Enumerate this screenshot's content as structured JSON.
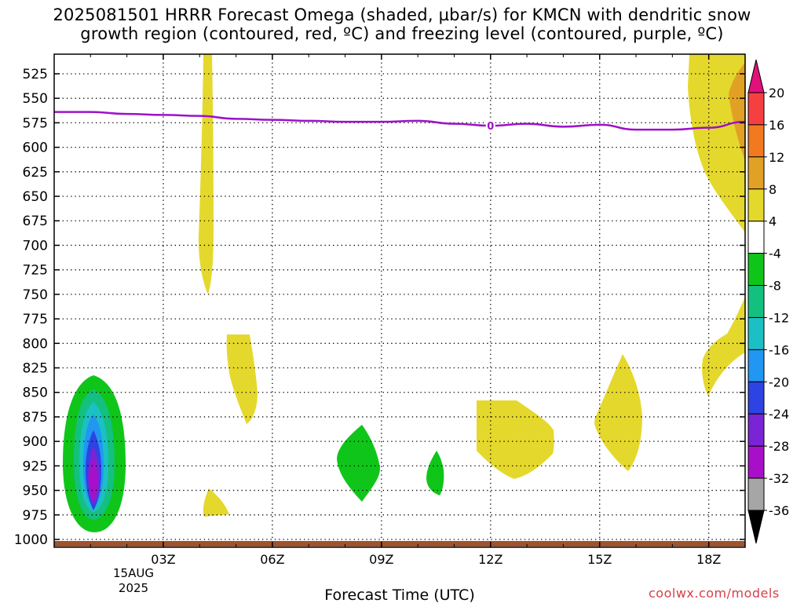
{
  "chart_data": {
    "type": "heatmap",
    "title_line1": "2025081501 HRRR Forecast Omega (shaded, µbar/s) for KMCN with dendritic snow",
    "title_line2": "growth region (contoured, red, ºC) and freezing level (contoured, purple, ºC)",
    "xlabel": "Forecast Time (UTC)",
    "x_ticks": [
      "03Z",
      "06Z",
      "09Z",
      "12Z",
      "15Z",
      "18Z"
    ],
    "x_tick_values": [
      3,
      6,
      9,
      12,
      15,
      18
    ],
    "x_date_label": [
      "15AUG",
      "2025"
    ],
    "xlim": [
      0,
      19
    ],
    "y_ticks": [
      525,
      550,
      575,
      600,
      625,
      650,
      675,
      700,
      725,
      750,
      775,
      800,
      825,
      850,
      875,
      900,
      925,
      950,
      975,
      1000
    ],
    "ylim_hpa": [
      1008,
      505
    ],
    "grid": true,
    "freezing_level": {
      "color": "#9d12c8",
      "label": "0",
      "points": [
        [
          0,
          564
        ],
        [
          1,
          564
        ],
        [
          2,
          566
        ],
        [
          3,
          567
        ],
        [
          4,
          568
        ],
        [
          5,
          571
        ],
        [
          6,
          572
        ],
        [
          7,
          573
        ],
        [
          8,
          574
        ],
        [
          9,
          574
        ],
        [
          10,
          573
        ],
        [
          11,
          576
        ],
        [
          12,
          578
        ],
        [
          13,
          576
        ],
        [
          14,
          579
        ],
        [
          15,
          577
        ],
        [
          16,
          582
        ],
        [
          17,
          582
        ],
        [
          18,
          580
        ],
        [
          19,
          574
        ]
      ]
    },
    "terrain": {
      "color": "#a0522d",
      "top_hpa": 1000
    },
    "colorbar": {
      "labels": [
        "20",
        "16",
        "12",
        "8",
        "4",
        "-4",
        "-8",
        "-12",
        "-16",
        "-20",
        "-24",
        "-28",
        "-32",
        "-36"
      ],
      "bands": [
        {
          "from": 16,
          "to": 20,
          "color": "#f63f40"
        },
        {
          "from": 12,
          "to": 16,
          "color": "#f27920"
        },
        {
          "from": 8,
          "to": 12,
          "color": "#e1a125"
        },
        {
          "from": 4,
          "to": 8,
          "color": "#e5d82c"
        },
        {
          "from": -4,
          "to": 4,
          "color": "#ffffff"
        },
        {
          "from": -8,
          "to": -4,
          "color": "#10c51a"
        },
        {
          "from": -12,
          "to": -8,
          "color": "#13c080"
        },
        {
          "from": -16,
          "to": -12,
          "color": "#1cc0c4"
        },
        {
          "from": -20,
          "to": -16,
          "color": "#2196f2"
        },
        {
          "from": -24,
          "to": -20,
          "color": "#2d43e3"
        },
        {
          "from": -28,
          "to": -24,
          "color": "#7a24d6"
        },
        {
          "from": -32,
          "to": -28,
          "color": "#a80fc9"
        },
        {
          "from": -36,
          "to": -32,
          "color": "#a6a6a6"
        }
      ],
      "top_arrow_color": "#e0117a",
      "bottom_arrow_color": "#000000"
    }
  },
  "credit": "coolwx.com/models"
}
